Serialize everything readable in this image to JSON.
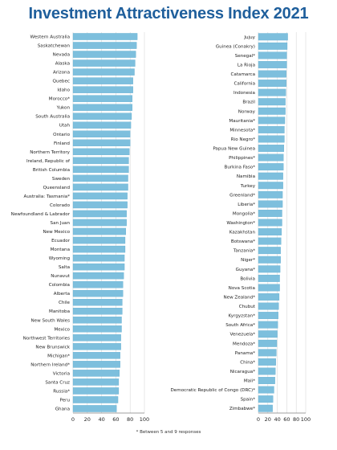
{
  "title": "Investment Attractiveness Index 2021",
  "footnote": "* Between 5 and 9 responses",
  "colors": {
    "title": "#1f5f9c",
    "bar": "#7dbfdd",
    "bar_edge": "#5aa8cc",
    "grid": "#d8d8d8",
    "axis": "#444444",
    "text": "#222222"
  },
  "chart_data": [
    {
      "type": "bar",
      "orientation": "horizontal",
      "title": "",
      "xlabel": "",
      "ylabel": "",
      "xlim": [
        0,
        100
      ],
      "xticks": [
        0,
        20,
        40,
        60,
        80,
        100
      ],
      "grid": true,
      "categories": [
        "Western Australia",
        "Saskatchewan",
        "Nevada",
        "Alaska",
        "Arizona",
        "Quebec",
        "Idaho",
        "Morocco*",
        "Yukon",
        "South Australia",
        "Utah",
        "Ontario",
        "Finland",
        "Northern Territory",
        "Ireland, Republic of",
        "British Columbia",
        "Sweden",
        "Queensland",
        "Australia: Tasmania*",
        "Colorado",
        "Newfoundland & Labrador",
        "San Juan",
        "New Mexico",
        "Ecuador",
        "Montana",
        "Wyoming",
        "Salta",
        "Nunavut",
        "Colombia",
        "Alberta",
        "Chile",
        "Manitoba",
        "New South Wales",
        "Mexico",
        "Northwest Territories",
        "New Brunswick",
        "Michigan*",
        "Northern Ireland*",
        "Victoria",
        "Santa Cruz",
        "Russia*",
        "Peru",
        "Ghana"
      ],
      "values": [
        90,
        89,
        88,
        87,
        86,
        84,
        84,
        83,
        83,
        82,
        81,
        80,
        80,
        79,
        78,
        78,
        77,
        77,
        76,
        76,
        75,
        75,
        74,
        73,
        73,
        72,
        72,
        71,
        70,
        70,
        69,
        69,
        68,
        68,
        67,
        67,
        66,
        66,
        65,
        64,
        64,
        63,
        61
      ]
    },
    {
      "type": "bar",
      "orientation": "horizontal",
      "title": "",
      "xlabel": "",
      "ylabel": "",
      "xlim": [
        0,
        100
      ],
      "xticks": [
        0,
        20,
        40,
        60,
        80,
        100
      ],
      "grid": true,
      "categories": [
        "Jujuy",
        "Guinea (Conakry)",
        "Senegal*",
        "La Rioja",
        "Catamarca",
        "California",
        "Indonesia",
        "Brazil",
        "Norway",
        "Mauritania*",
        "Minnesota*",
        "Rio Negro*",
        "Papua New Guinea",
        "Philippines*",
        "Burkina Faso*",
        "Namibia",
        "Turkey",
        "Greenland*",
        "Liberia*",
        "Mongolia*",
        "Washington*",
        "Kazakhstan",
        "Botswana*",
        "Tanzania*",
        "Niger*",
        "Guyana*",
        "Bolivia",
        "Nova Scotia",
        "New Zealand*",
        "Chubut",
        "Kyrgyzstan*",
        "South Africa*",
        "Venezuela*",
        "Mendoza*",
        "Panama*",
        "China*",
        "Nicaragua*",
        "Mali*",
        "Democratic Republic of Congo (DRC)*",
        "Spain*",
        "Zimbabwe*"
      ],
      "values": [
        62,
        61,
        60,
        60,
        59,
        59,
        58,
        57,
        57,
        56,
        55,
        55,
        54,
        53,
        53,
        52,
        52,
        51,
        51,
        50,
        50,
        49,
        48,
        47,
        47,
        46,
        45,
        45,
        44,
        43,
        42,
        41,
        40,
        39,
        38,
        37,
        36,
        35,
        33,
        31,
        30
      ]
    }
  ]
}
